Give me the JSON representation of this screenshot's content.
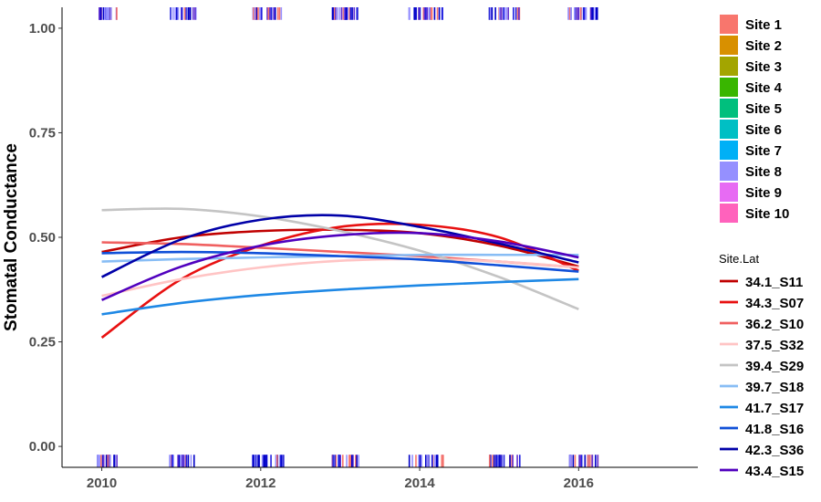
{
  "chart_data": {
    "type": "line",
    "title": "",
    "xlabel": "",
    "ylabel": "Stomatal Conductance",
    "xlim": [
      2009.5,
      2017.5
    ],
    "ylim": [
      -0.05,
      1.05
    ],
    "x_ticks": [
      2010,
      2012,
      2014,
      2016
    ],
    "y_ticks": [
      0.0,
      0.25,
      0.5,
      0.75,
      1.0
    ],
    "y_tick_labels": [
      "0.00",
      "0.25",
      "0.50",
      "0.75",
      "1.00"
    ],
    "x_tick_labels": [
      "2010",
      "2012",
      "2014",
      "2016"
    ],
    "grid": false,
    "fill_legend": {
      "title": "",
      "entries": [
        {
          "label": "Site 1",
          "color": "#F8766D"
        },
        {
          "label": "Site 2",
          "color": "#D89000"
        },
        {
          "label": "Site 3",
          "color": "#A3A500"
        },
        {
          "label": "Site 4",
          "color": "#39B600"
        },
        {
          "label": "Site 5",
          "color": "#00BF7D"
        },
        {
          "label": "Site 6",
          "color": "#00BFC4"
        },
        {
          "label": "Site 7",
          "color": "#00B0F6"
        },
        {
          "label": "Site 8",
          "color": "#9590FF"
        },
        {
          "label": "Site 9",
          "color": "#E76BF3"
        },
        {
          "label": "Site 10",
          "color": "#FF62BC"
        }
      ]
    },
    "color_legend": {
      "title": "Site.Lat",
      "placement": "right"
    },
    "x": [
      2010,
      2011,
      2012,
      2013,
      2014,
      2015,
      2016
    ],
    "series": [
      {
        "name": "34.1_S11",
        "color": "#C00000",
        "values": [
          0.465,
          0.5,
          0.515,
          0.518,
          0.51,
          0.48,
          0.43
        ]
      },
      {
        "name": "34.3_S07",
        "color": "#E81010",
        "values": [
          0.26,
          0.4,
          0.48,
          0.525,
          0.53,
          0.5,
          0.42
        ]
      },
      {
        "name": "36.2_S10",
        "color": "#F06060",
        "values": [
          0.488,
          0.484,
          0.475,
          0.465,
          0.455,
          0.442,
          0.428
        ]
      },
      {
        "name": "37.5_S32",
        "color": "#FFC4C4",
        "values": [
          0.36,
          0.4,
          0.428,
          0.444,
          0.448,
          0.442,
          0.428
        ]
      },
      {
        "name": "39.4_S29",
        "color": "#C4C4C4",
        "values": [
          0.565,
          0.568,
          0.55,
          0.515,
          0.468,
          0.405,
          0.328
        ]
      },
      {
        "name": "39.7_S18",
        "color": "#88BDF5",
        "values": [
          0.442,
          0.448,
          0.452,
          0.455,
          0.458,
          0.458,
          0.458
        ]
      },
      {
        "name": "41.7_S17",
        "color": "#1E88E5",
        "values": [
          0.316,
          0.343,
          0.362,
          0.375,
          0.385,
          0.393,
          0.4
        ]
      },
      {
        "name": "41.8_S16",
        "color": "#1050D8",
        "values": [
          0.462,
          0.465,
          0.462,
          0.455,
          0.447,
          0.433,
          0.418
        ]
      },
      {
        "name": "42.3_S36",
        "color": "#0000A8",
        "values": [
          0.405,
          0.495,
          0.542,
          0.552,
          0.525,
          0.485,
          0.44
        ]
      },
      {
        "name": "43.4_S15",
        "color": "#5000BE",
        "values": [
          0.35,
          0.43,
          0.48,
          0.505,
          0.51,
          0.49,
          0.452
        ]
      }
    ],
    "rug": {
      "description_colors": [
        "#F8766D",
        "#9590FF",
        "#2020E0",
        "#0000C8",
        "#6030D0"
      ],
      "x_clusters": [
        [
          2009.95,
          2010.2
        ],
        [
          2010.85,
          2011.2
        ],
        [
          2011.9,
          2012.3
        ],
        [
          2012.9,
          2013.25
        ],
        [
          2013.85,
          2014.3
        ],
        [
          2014.85,
          2015.3
        ],
        [
          2015.85,
          2016.25
        ]
      ]
    }
  }
}
